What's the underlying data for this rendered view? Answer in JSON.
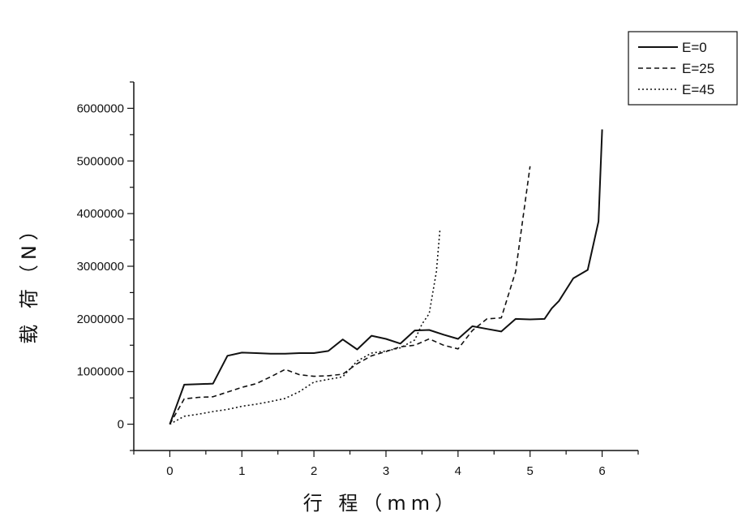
{
  "chart_data": {
    "type": "line",
    "xlabel": "行 程（mm）",
    "ylabel": "载 荷（N）",
    "xlim": [
      -0.5,
      6.5
    ],
    "ylim": [
      -500000,
      6500000
    ],
    "xticks": [
      0,
      1,
      2,
      3,
      4,
      5,
      6
    ],
    "xtick_labels": [
      "0",
      "1",
      "2",
      "3",
      "4",
      "5",
      "6"
    ],
    "yticks": [
      0,
      1000000,
      2000000,
      3000000,
      4000000,
      5000000,
      6000000
    ],
    "ytick_labels": [
      "0",
      "1000000",
      "2000000",
      "3000000",
      "4000000",
      "5000000",
      "6000000"
    ],
    "grid": false,
    "legend_position": "top-right",
    "series": [
      {
        "name": "E=0",
        "line_style": "solid",
        "color": "#111111",
        "x": [
          0,
          0.2,
          0.4,
          0.6,
          0.8,
          1.0,
          1.2,
          1.4,
          1.6,
          1.8,
          2.0,
          2.2,
          2.4,
          2.6,
          2.8,
          3.0,
          3.2,
          3.4,
          3.6,
          3.8,
          4.0,
          4.2,
          4.4,
          4.6,
          4.8,
          5.0,
          5.2,
          5.3,
          5.4,
          5.6,
          5.8,
          5.95,
          6.0
        ],
        "y": [
          0,
          750000,
          760000,
          770000,
          1300000,
          1360000,
          1350000,
          1340000,
          1340000,
          1350000,
          1350000,
          1390000,
          1610000,
          1420000,
          1680000,
          1620000,
          1530000,
          1780000,
          1790000,
          1700000,
          1620000,
          1860000,
          1810000,
          1760000,
          2000000,
          1990000,
          2000000,
          2200000,
          2340000,
          2770000,
          2930000,
          3850000,
          5600000
        ]
      },
      {
        "name": "E=25",
        "line_style": "dashed",
        "color": "#111111",
        "x": [
          0,
          0.2,
          0.4,
          0.6,
          0.8,
          1.0,
          1.2,
          1.4,
          1.6,
          1.8,
          2.0,
          2.2,
          2.4,
          2.6,
          2.8,
          3.0,
          3.2,
          3.4,
          3.6,
          3.8,
          4.0,
          4.2,
          4.4,
          4.6,
          4.8,
          5.0
        ],
        "y": [
          0,
          480000,
          510000,
          520000,
          610000,
          700000,
          770000,
          900000,
          1040000,
          940000,
          910000,
          920000,
          950000,
          1150000,
          1300000,
          1380000,
          1470000,
          1500000,
          1620000,
          1500000,
          1430000,
          1780000,
          2000000,
          2020000,
          2900000,
          4900000
        ]
      },
      {
        "name": "E=45",
        "line_style": "dotted",
        "color": "#111111",
        "x": [
          0,
          0.2,
          0.4,
          0.6,
          0.8,
          1.0,
          1.2,
          1.4,
          1.6,
          1.8,
          2.0,
          2.2,
          2.4,
          2.6,
          2.8,
          3.0,
          3.2,
          3.4,
          3.5,
          3.6,
          3.7,
          3.75
        ],
        "y": [
          0,
          150000,
          190000,
          240000,
          280000,
          340000,
          380000,
          430000,
          490000,
          620000,
          800000,
          850000,
          900000,
          1200000,
          1350000,
          1390000,
          1450000,
          1600000,
          1900000,
          2100000,
          2900000,
          3700000
        ]
      }
    ]
  }
}
